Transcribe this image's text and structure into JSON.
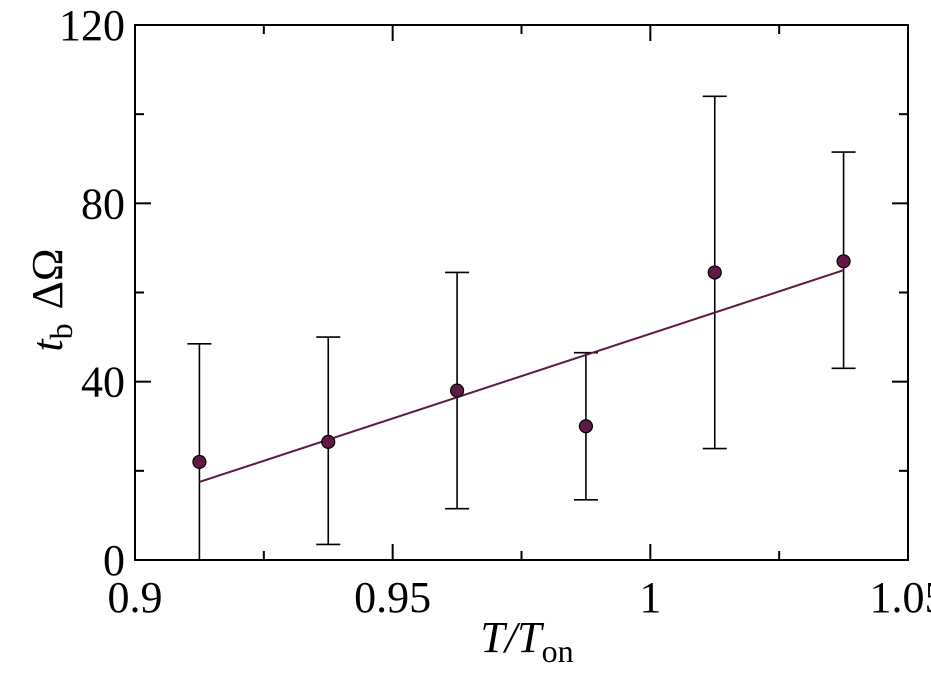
{
  "chart_data": {
    "type": "scatter",
    "title": "",
    "xlabel": {
      "main": "T/T",
      "sub": "on"
    },
    "ylabel": {
      "main": "t",
      "sub": "b",
      "suffix": "ΔΩ"
    },
    "xlim": [
      0.9,
      1.05
    ],
    "ylim": [
      0,
      120
    ],
    "x_ticks": [
      0.9,
      0.95,
      1,
      1.05
    ],
    "x_tick_labels": [
      "0.9",
      "0.95",
      "1",
      "1.05"
    ],
    "x_minor_ticks": [
      0.925,
      0.975,
      1.025
    ],
    "y_ticks": [
      0,
      40,
      80,
      120
    ],
    "y_tick_labels": [
      "0",
      "40",
      "80",
      "120"
    ],
    "y_minor_ticks": [
      20,
      60,
      100
    ],
    "grid": false,
    "legend": "none",
    "series": [
      {
        "kind": "points-with-error-bars",
        "x": [
          0.9125,
          0.9375,
          0.9625,
          0.9875,
          1.0125,
          1.0375
        ],
        "y": [
          22,
          26.5,
          38,
          30,
          64.5,
          67
        ],
        "err_low": [
          0,
          3.5,
          11.5,
          13.5,
          25,
          43
        ],
        "err_high": [
          48.5,
          50,
          64.5,
          46.5,
          104,
          91.5
        ],
        "color": "#5e1a44"
      },
      {
        "kind": "fit-line",
        "x": [
          0.9125,
          1.0375
        ],
        "y": [
          17.5,
          65
        ],
        "color": "#5e1a44"
      }
    ]
  }
}
